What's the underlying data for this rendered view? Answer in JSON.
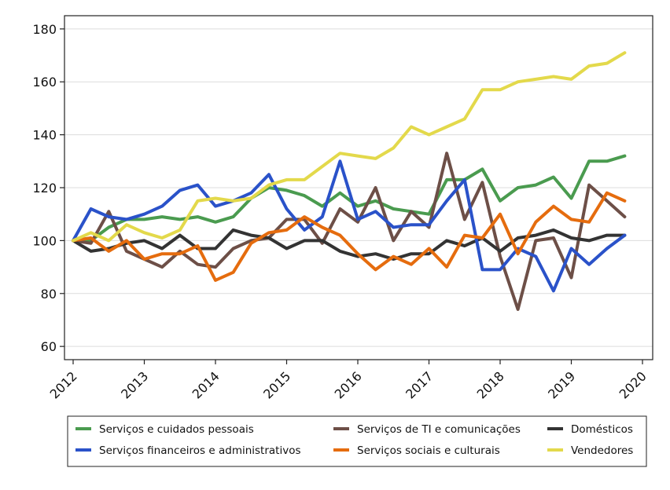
{
  "chart_data": {
    "type": "line",
    "title": "",
    "xlabel": "",
    "ylabel": "",
    "xlim": [
      2012,
      2020
    ],
    "ylim": [
      55,
      185
    ],
    "x_ticks": [
      2012,
      2013,
      2014,
      2015,
      2016,
      2017,
      2018,
      2019,
      2020
    ],
    "y_ticks": [
      60,
      80,
      100,
      120,
      140,
      160,
      180
    ],
    "grid": "horizontal",
    "legend_position": "bottom",
    "x": [
      2012.0,
      2012.25,
      2012.5,
      2012.75,
      2013.0,
      2013.25,
      2013.5,
      2013.75,
      2014.0,
      2014.25,
      2014.5,
      2014.75,
      2015.0,
      2015.25,
      2015.5,
      2015.75,
      2016.0,
      2016.25,
      2016.5,
      2016.75,
      2017.0,
      2017.25,
      2017.5,
      2017.75,
      2018.0,
      2018.25,
      2018.5,
      2018.75,
      2019.0,
      2019.25,
      2019.5,
      2019.75
    ],
    "series": [
      {
        "name": "Serviços e cuidados pessoais",
        "color": "#4a9b4f",
        "values": [
          100,
          100,
          105,
          108,
          108,
          109,
          108,
          109,
          107,
          109,
          116,
          120,
          119,
          117,
          113,
          118,
          113,
          115,
          112,
          111,
          110,
          123,
          123,
          127,
          115,
          120,
          121,
          124,
          116,
          130,
          130,
          132
        ]
      },
      {
        "name": "Serviços de TI e comunicações",
        "color": "#6d4f47",
        "values": [
          100,
          99,
          111,
          96,
          93,
          90,
          96,
          91,
          90,
          97,
          100,
          101,
          108,
          108,
          99,
          112,
          107,
          120,
          100,
          111,
          105,
          133,
          108,
          122,
          94,
          74,
          100,
          101,
          86,
          121,
          115,
          109
        ]
      },
      {
        "name": "Domésticos",
        "color": "#333333",
        "values": [
          100,
          96,
          97,
          99,
          100,
          97,
          102,
          97,
          97,
          104,
          102,
          101,
          97,
          100,
          100,
          96,
          94,
          95,
          93,
          95,
          95,
          100,
          98,
          101,
          96,
          101,
          102,
          104,
          101,
          100,
          102,
          102
        ]
      },
      {
        "name": "Serviços financeiros e administrativos",
        "color": "#2a52c9",
        "values": [
          100,
          112,
          109,
          108,
          110,
          113,
          119,
          121,
          113,
          115,
          118,
          125,
          112,
          104,
          109,
          130,
          108,
          111,
          105,
          106,
          106,
          115,
          123,
          89,
          89,
          97,
          94,
          81,
          97,
          91,
          97,
          102
        ]
      },
      {
        "name": "Serviços sociais e culturais",
        "color": "#e56c0e",
        "values": [
          100,
          101,
          96,
          100,
          93,
          95,
          95,
          98,
          85,
          88,
          99,
          103,
          104,
          109,
          105,
          102,
          95,
          89,
          94,
          91,
          97,
          90,
          102,
          101,
          110,
          95,
          107,
          113,
          108,
          107,
          118,
          115
        ]
      },
      {
        "name": "Vendedores",
        "color": "#e3d94b",
        "values": [
          100,
          103,
          100,
          106,
          103,
          101,
          104,
          115,
          116,
          115,
          116,
          121,
          123,
          123,
          128,
          133,
          132,
          131,
          135,
          143,
          140,
          143,
          146,
          157,
          157,
          160,
          161,
          162,
          161,
          166,
          167,
          171
        ]
      }
    ]
  },
  "legend": {
    "rows": [
      [
        "Serviços e cuidados pessoais",
        "Serviços de TI e comunicações",
        "Domésticos"
      ],
      [
        "Serviços financeiros e administrativos",
        "Serviços sociais e culturais",
        "Vendedores"
      ]
    ]
  }
}
